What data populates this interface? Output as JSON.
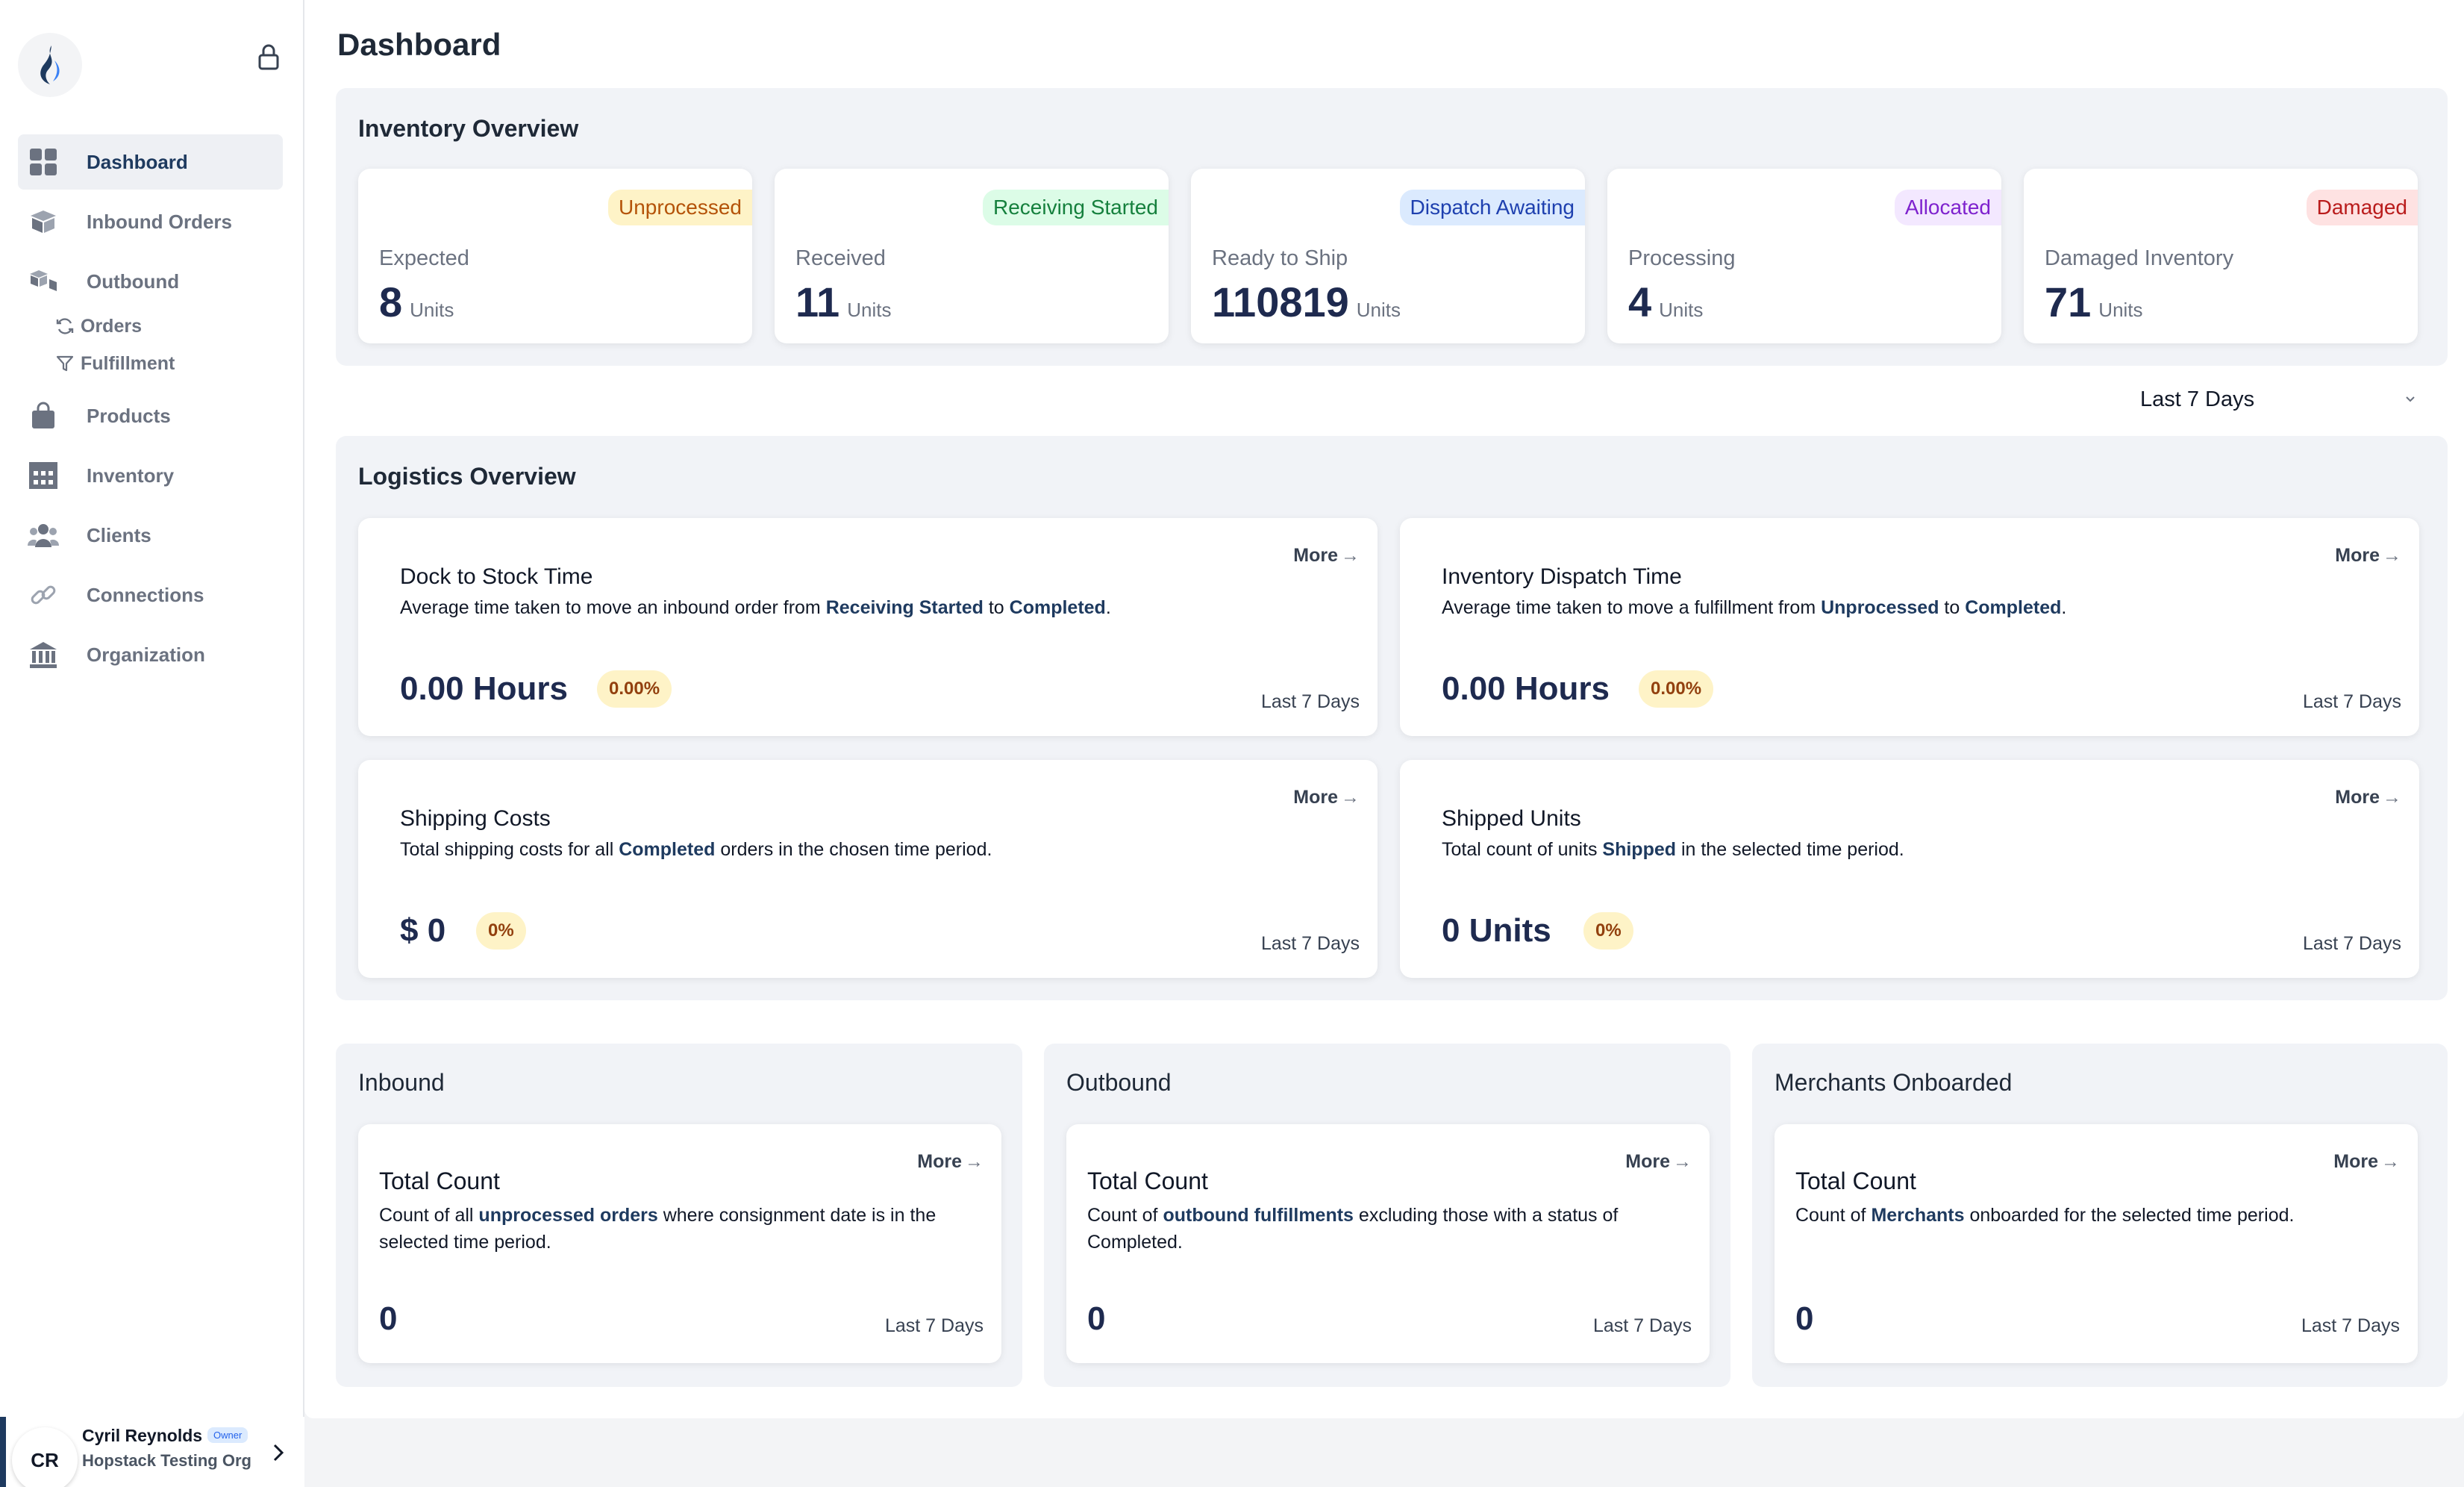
{
  "sidebar": {
    "items": [
      {
        "label": "Dashboard",
        "icon": "grid-icon"
      },
      {
        "label": "Inbound Orders",
        "icon": "box-icon"
      },
      {
        "label": "Outbound",
        "icon": "boxes-icon"
      },
      {
        "label": "Products",
        "icon": "bag-icon"
      },
      {
        "label": "Inventory",
        "icon": "warehouse-icon"
      },
      {
        "label": "Clients",
        "icon": "users-icon"
      },
      {
        "label": "Connections",
        "icon": "link-icon"
      },
      {
        "label": "Organization",
        "icon": "bank-icon"
      }
    ],
    "subitems": [
      {
        "label": "Orders",
        "icon": "refresh-icon"
      },
      {
        "label": "Fulfillment",
        "icon": "filter-icon"
      }
    ]
  },
  "user": {
    "initials": "CR",
    "name": "Cyril Reynolds",
    "role": "Owner",
    "org": "Hopstack Testing Org"
  },
  "page": {
    "title": "Dashboard"
  },
  "inventory": {
    "title": "Inventory Overview",
    "cards": [
      {
        "badge": "Unprocessed",
        "label": "Expected",
        "value": "8",
        "unit": "Units",
        "badge_bg": "#fef3c7",
        "badge_color": "#b45309"
      },
      {
        "badge": "Receiving Started",
        "label": "Received",
        "value": "11",
        "unit": "Units",
        "badge_bg": "#dcfce7",
        "badge_color": "#15803d"
      },
      {
        "badge": "Dispatch Awaiting",
        "label": "Ready to Ship",
        "value": "110819",
        "unit": "Units",
        "badge_bg": "#dbeafe",
        "badge_color": "#1e40af"
      },
      {
        "badge": "Allocated",
        "label": "Processing",
        "value": "4",
        "unit": "Units",
        "badge_bg": "#f3e8ff",
        "badge_color": "#7e22ce"
      },
      {
        "badge": "Damaged",
        "label": "Damaged Inventory",
        "value": "71",
        "unit": "Units",
        "badge_bg": "#fee2e2",
        "badge_color": "#b91c1c"
      }
    ]
  },
  "filter": {
    "label": "Last 7 Days"
  },
  "logistics": {
    "title": "Logistics Overview",
    "cards": [
      {
        "title": "Dock to Stock Time",
        "desc_a": "Average time taken to move an inbound order from ",
        "desc_b": "Receiving Started",
        "desc_c": " to ",
        "desc_d": "Completed",
        "desc_e": ".",
        "value": "0.00 Hours",
        "pct": "0.00%",
        "more": "More",
        "period": "Last 7 Days"
      },
      {
        "title": "Inventory Dispatch Time",
        "desc_a": "Average time taken to move a fulfillment from ",
        "desc_b": "Unprocessed",
        "desc_c": " to ",
        "desc_d": "Completed",
        "desc_e": ".",
        "value": "0.00 Hours",
        "pct": "0.00%",
        "more": "More",
        "period": "Last 7 Days"
      },
      {
        "title": "Shipping Costs",
        "desc_a": "Total shipping costs for all ",
        "desc_b": "Completed",
        "desc_c": " orders in the chosen time period.",
        "desc_d": "",
        "desc_e": "",
        "value": "$ 0",
        "pct": "0%",
        "more": "More",
        "period": "Last 7 Days"
      },
      {
        "title": "Shipped Units",
        "desc_a": "Total count of units ",
        "desc_b": "Shipped",
        "desc_c": " in the selected time period.",
        "desc_d": "",
        "desc_e": "",
        "value": "0 Units",
        "pct": "0%",
        "more": "More",
        "period": "Last 7 Days"
      }
    ]
  },
  "summary": [
    {
      "panel": "Inbound",
      "title": "Total Count",
      "desc_a": "Count of all ",
      "desc_b": "unprocessed orders",
      "desc_c": " where consignment date is in the selected time period.",
      "value": "0",
      "more": "More",
      "period": "Last 7 Days"
    },
    {
      "panel": "Outbound",
      "title": "Total Count",
      "desc_a": "Count of ",
      "desc_b": "outbound fulfillments",
      "desc_c": " excluding those with a status of Completed.",
      "value": "0",
      "more": "More",
      "period": "Last 7 Days"
    },
    {
      "panel": "Merchants Onboarded",
      "title": "Total Count",
      "desc_a": "Count of ",
      "desc_b": "Merchants",
      "desc_c": " onboarded for the selected time period.",
      "value": "0",
      "more": "More",
      "period": "Last 7 Days"
    }
  ],
  "colors": {
    "brand": "#1e3a5f",
    "accent_text": "#1e3a5f",
    "pct_bg": "#fef3c7"
  }
}
